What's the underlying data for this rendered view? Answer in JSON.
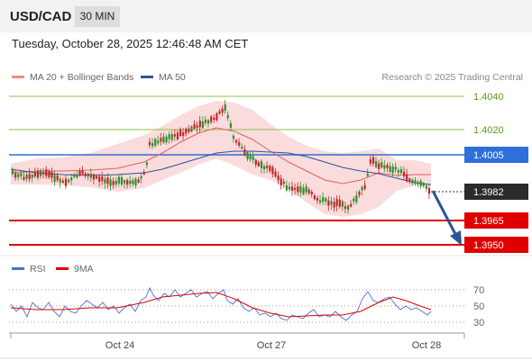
{
  "header": {
    "symbol": "USD/CAD",
    "timeframe": "30 MIN"
  },
  "datetime": "Tuesday, October 28, 2025 12:46:48 AM CET",
  "legend": {
    "items": [
      {
        "label": "MA 20 + Bollinger Bands",
        "color": "#f28b82"
      },
      {
        "label": "MA 50",
        "color": "#2a5599"
      }
    ],
    "credit": "Research © 2025 Trading Central"
  },
  "price_levels": [
    {
      "value": 1.404,
      "label": "1.4040",
      "style": "green"
    },
    {
      "value": 1.402,
      "label": "1.4020",
      "style": "green"
    },
    {
      "value": 1.4005,
      "label": "1.4005",
      "style": "pivot"
    },
    {
      "value": 1.3982,
      "label": "1.3982",
      "style": "current"
    },
    {
      "value": 1.3965,
      "label": "1.3965",
      "style": "support"
    },
    {
      "value": 1.395,
      "label": "1.3950",
      "style": "support"
    }
  ],
  "rsi_legend": [
    {
      "label": "RSI",
      "color": "#4a72d4"
    },
    {
      "label": "9MA",
      "color": "#e00000"
    }
  ],
  "rsi_levels": [
    "70",
    "50",
    "30"
  ],
  "x_labels": [
    "Oct 24",
    "Oct 27",
    "Oct 28"
  ],
  "colors": {
    "bull": "#2f8f2f",
    "bear": "#c0262b",
    "pivot": "#2d6fdb",
    "support": "#e00000",
    "green_level": "#8ac04a",
    "arrow": "#2a5599",
    "band": "#f8caca"
  },
  "chart_data": {
    "type": "candlestick",
    "y_axis_ticks": [
      "1.4040",
      "1.4020",
      "1.4005",
      "1.3982",
      "1.3965",
      "1.3950"
    ],
    "indicators": [
      "MA 20 + Bollinger Bands",
      "MA 50",
      "RSI",
      "9MA"
    ],
    "projection": "bearish arrow toward 1.3950"
  }
}
